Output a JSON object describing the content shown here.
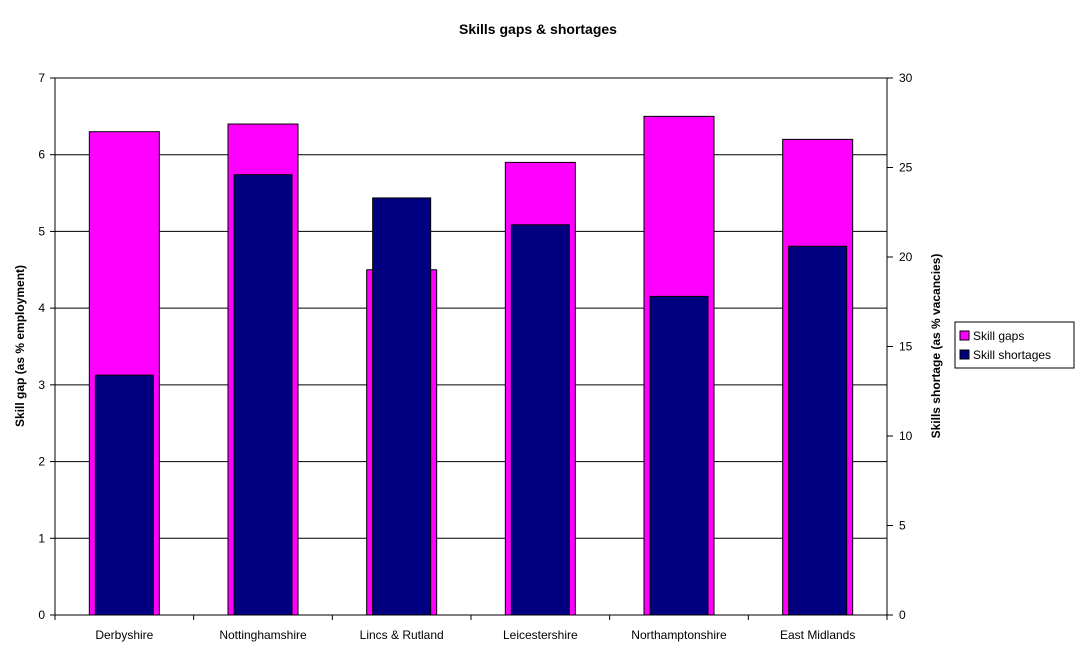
{
  "chart_data": {
    "type": "bar",
    "title": "Skills gaps & shortages",
    "categories": [
      "Derbyshire",
      "Nottinghamshire",
      "Lincs & Rutland",
      "Leicestershire",
      "Northamptonshire",
      "East Midlands"
    ],
    "y_left": {
      "label": "Skill gap (as % employment)",
      "range": [
        0,
        7
      ],
      "ticks": [
        "0",
        "1",
        "2",
        "3",
        "4",
        "5",
        "6",
        "7"
      ]
    },
    "y_right": {
      "label": "Skills shortage (as % vacancies)",
      "range": [
        0,
        30
      ],
      "ticks": [
        "0",
        "5",
        "10",
        "15",
        "20",
        "25",
        "30"
      ]
    },
    "series": [
      {
        "name": "Skill gaps",
        "axis": "left",
        "color": "#ff00ff",
        "values": [
          6.3,
          6.4,
          4.5,
          5.9,
          6.5,
          6.2
        ]
      },
      {
        "name": "Skill shortages",
        "axis": "right",
        "color": "#000080",
        "values": [
          13.4,
          24.6,
          23.3,
          21.8,
          17.8,
          20.6
        ]
      }
    ],
    "grid": true,
    "legend_position": "right"
  }
}
